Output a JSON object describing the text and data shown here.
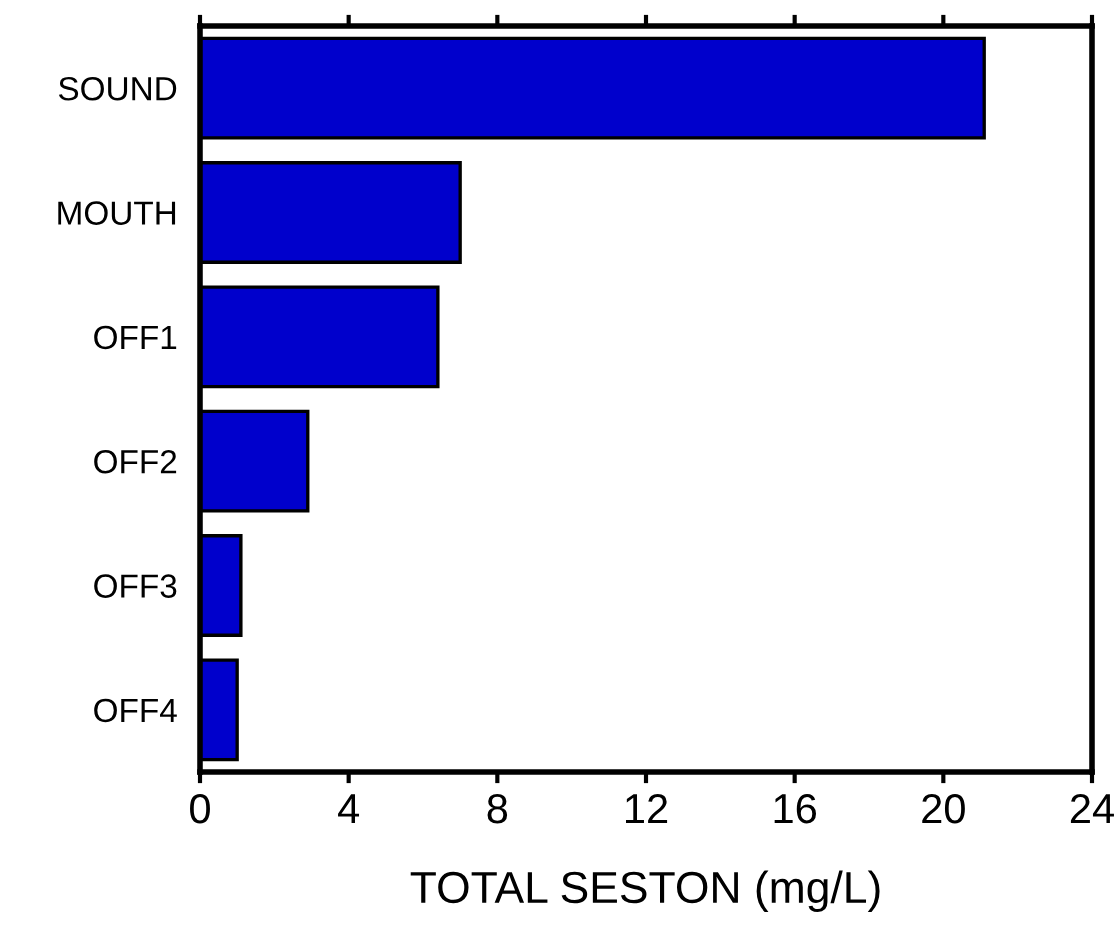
{
  "chart_data": {
    "type": "bar",
    "orientation": "horizontal",
    "xlabel": "TOTAL SESTON (mg/L)",
    "categories": [
      "SOUND",
      "MOUTH",
      "OFF1",
      "OFF2",
      "OFF3",
      "OFF4"
    ],
    "values": [
      21.1,
      7.0,
      6.4,
      2.9,
      1.1,
      1.0
    ],
    "color": "#0000cc",
    "xlim": [
      0,
      24
    ],
    "xticks": [
      0,
      4,
      8,
      12,
      16,
      20,
      24
    ],
    "grid": false
  }
}
